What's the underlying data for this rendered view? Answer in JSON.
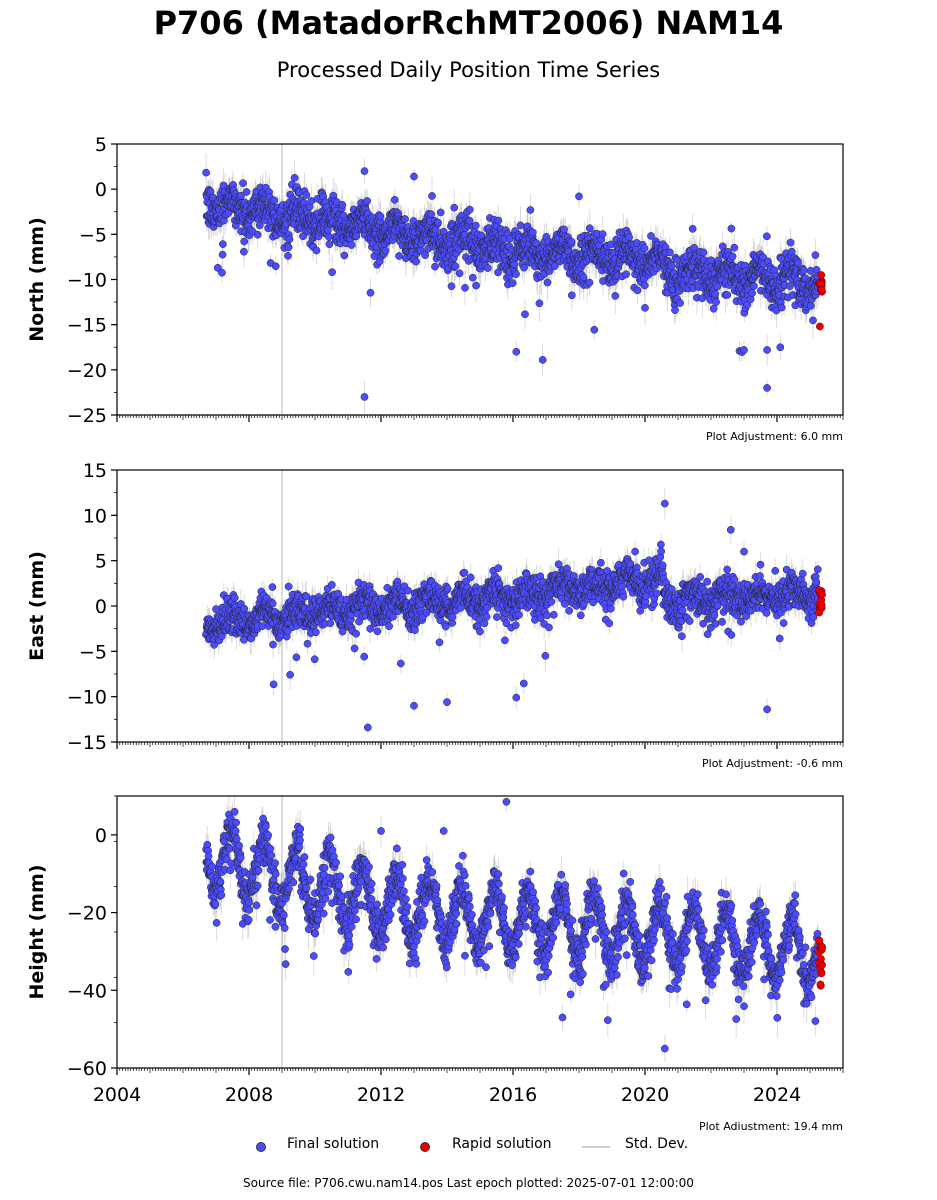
{
  "title": "P706 (MatadorRchMT2006) NAM14",
  "subtitle": "Processed Daily Position Time Series",
  "footer": "Source file: P706.cwu.nam14.pos  Last epoch plotted: 2025-07-01 12:00:00",
  "legend": {
    "final": "Final solution",
    "rapid": "Rapid solution",
    "std": "Std. Dev."
  },
  "colors": {
    "final": "#4c4cff",
    "rapid": "#ee0000",
    "std": "#b0b0b0"
  },
  "chart_data": [
    {
      "type": "scatter",
      "ylabel": "North (mm)",
      "ylim": [
        -25,
        5
      ],
      "yticks": [
        5,
        0,
        -5,
        -10,
        -15,
        -20,
        -25
      ],
      "xlim": [
        2004,
        2026
      ],
      "adjustment": "Plot Adjustment: 6.0 mm",
      "vertical_line_x": 2009.0,
      "series": [
        {
          "name": "Final solution",
          "trend": [
            [
              2006.7,
              -1.5
            ],
            [
              2012,
              -4.5
            ],
            [
              2016,
              -6.8
            ],
            [
              2020.5,
              -7.7
            ],
            [
              2020.6,
              -9.0
            ],
            [
              2025.3,
              -10.3
            ]
          ],
          "seasonal_amp": 1.0,
          "scatter": 1.2,
          "range": [
            2006.7,
            2025.25
          ]
        },
        {
          "name": "Rapid solution",
          "values_range": [
            -11.5,
            -9.5
          ],
          "outliers": [
            -15.2
          ],
          "range": [
            2025.25,
            2025.5
          ]
        }
      ],
      "outliers": [
        [
          2011.5,
          -23.0
        ],
        [
          2023.7,
          -22.0
        ],
        [
          2011.5,
          2.0
        ],
        [
          2013.0,
          1.4
        ],
        [
          2018.0,
          -0.8
        ],
        [
          2016.9,
          -18.9
        ],
        [
          2016.1,
          -18.0
        ],
        [
          2023.0,
          -17.8
        ],
        [
          2023.7,
          -17.8
        ],
        [
          2024.1,
          -17.5
        ]
      ]
    },
    {
      "type": "scatter",
      "ylabel": "East (mm)",
      "ylim": [
        -15,
        15
      ],
      "yticks": [
        15,
        10,
        5,
        0,
        -5,
        -10,
        -15
      ],
      "xlim": [
        2004,
        2026
      ],
      "adjustment": "Plot Adjustment: -0.6 mm",
      "vertical_line_x": 2009.0,
      "series": [
        {
          "name": "Final solution",
          "trend": [
            [
              2006.7,
              -1.8
            ],
            [
              2012,
              0.0
            ],
            [
              2016,
              1.0
            ],
            [
              2020.5,
              3.0
            ],
            [
              2020.6,
              0.5
            ],
            [
              2025.3,
              1.6
            ]
          ],
          "seasonal_amp": 0.8,
          "scatter": 1.0,
          "range": [
            2006.7,
            2025.25
          ]
        },
        {
          "name": "Rapid solution",
          "values_range": [
            -0.8,
            1.8
          ],
          "outliers": [],
          "range": [
            2025.25,
            2025.5
          ]
        }
      ],
      "outliers": [
        [
          2020.6,
          11.3
        ],
        [
          2022.6,
          8.4
        ],
        [
          2023.0,
          6.0
        ],
        [
          2019.7,
          6.0
        ],
        [
          2011.6,
          -13.4
        ],
        [
          2023.7,
          -11.4
        ],
        [
          2013.0,
          -11.0
        ],
        [
          2014.0,
          -10.6
        ],
        [
          2016.1,
          -10.1
        ]
      ]
    },
    {
      "type": "scatter",
      "ylabel": "Height (mm)",
      "ylim": [
        -60,
        10
      ],
      "yticks": [
        0,
        -20,
        -40,
        -60
      ],
      "xlim": [
        2004,
        2026
      ],
      "xticks": [
        2004,
        2008,
        2012,
        2016,
        2020,
        2024
      ],
      "adjustment": "Plot Adjustment: 19.4 mm",
      "vertical_line_x": 2009.0,
      "series": [
        {
          "name": "Final solution",
          "trend": [
            [
              2006.7,
              -5.0
            ],
            [
              2012,
              -18.0
            ],
            [
              2016,
              -22.0
            ],
            [
              2020.5,
              -26.0
            ],
            [
              2025.3,
              -30.0
            ]
          ],
          "seasonal_amp": 8.0,
          "scatter": 3.0,
          "range": [
            2006.7,
            2025.25
          ]
        },
        {
          "name": "Rapid solution",
          "values_range": [
            -39.0,
            -27.0
          ],
          "outliers": [],
          "range": [
            2025.25,
            2025.5
          ]
        }
      ],
      "outliers": [
        [
          2020.6,
          -55.0
        ],
        [
          2015.8,
          8.5
        ],
        [
          2017.5,
          -47.0
        ],
        [
          2012.0,
          1.0
        ],
        [
          2013.9,
          1.0
        ]
      ]
    }
  ]
}
